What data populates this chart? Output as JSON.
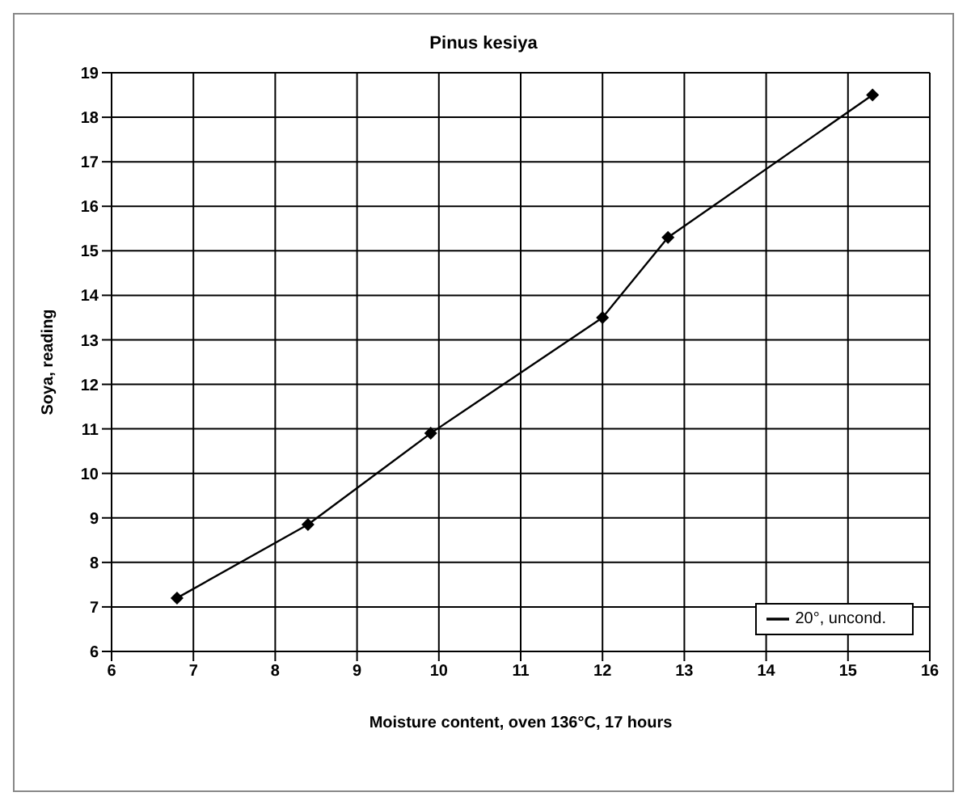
{
  "chart_data": {
    "type": "line",
    "title": "Pinus kesiya",
    "xlabel": "Moisture content, oven 136°C, 17 hours",
    "ylabel": "Soya, reading",
    "x": [
      6.8,
      8.4,
      9.9,
      12.0,
      12.8,
      15.3
    ],
    "series": [
      {
        "name": "20°, uncond.",
        "color": "#000000",
        "values": [
          7.2,
          8.85,
          10.9,
          13.5,
          15.3,
          18.5
        ]
      }
    ],
    "xlim": [
      6,
      16
    ],
    "xticks": [
      6,
      7,
      8,
      9,
      10,
      11,
      12,
      13,
      14,
      15,
      16
    ],
    "ylim": [
      6,
      19
    ],
    "yticks": [
      6,
      7,
      8,
      9,
      10,
      11,
      12,
      13,
      14,
      15,
      16,
      17,
      18,
      19
    ],
    "grid": true,
    "legend": "bottom right",
    "marker": "diamond",
    "line_style": "solid"
  }
}
